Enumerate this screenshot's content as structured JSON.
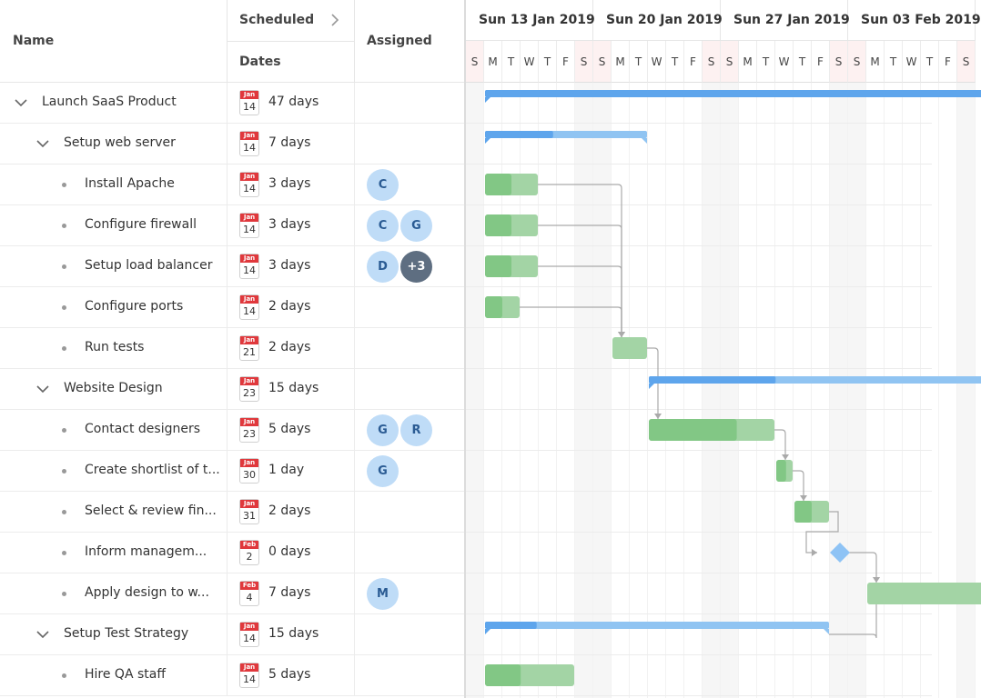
{
  "columns": {
    "name": "Name",
    "scheduled": "Scheduled",
    "dates": "Dates",
    "assigned": "Assigned"
  },
  "timeline": {
    "weeks": [
      "Sun 13 Jan 2019",
      "Sun 20 Jan 2019",
      "Sun 27 Jan 2019",
      "Sun 03 Feb 2019"
    ],
    "day_letters": [
      "S",
      "M",
      "T",
      "W",
      "T",
      "F",
      "S"
    ]
  },
  "rows": [
    {
      "name": "Launch SaaS Product",
      "level": 0,
      "type": "parent",
      "month": "Jan",
      "day": "14",
      "duration": "47 days",
      "assigned": [],
      "bar": {
        "start": 1,
        "len": 47,
        "progress": 0.78
      }
    },
    {
      "name": "Setup web server",
      "level": 1,
      "type": "parent",
      "month": "Jan",
      "day": "14",
      "duration": "7 days",
      "assigned": [],
      "bar": {
        "start": 1,
        "len": 9,
        "progress": 0.42
      }
    },
    {
      "name": "Install Apache",
      "level": 2,
      "type": "task",
      "month": "Jan",
      "day": "14",
      "duration": "3 days",
      "assigned": [
        "C"
      ],
      "bar": {
        "start": 1,
        "len": 3,
        "progress": 0.5
      }
    },
    {
      "name": "Configure firewall",
      "level": 2,
      "type": "task",
      "month": "Jan",
      "day": "14",
      "duration": "3 days",
      "assigned": [
        "C",
        "G"
      ],
      "bar": {
        "start": 1,
        "len": 3,
        "progress": 0.5
      }
    },
    {
      "name": "Setup load balancer",
      "level": 2,
      "type": "task",
      "month": "Jan",
      "day": "14",
      "duration": "3 days",
      "assigned": [
        "D",
        "+3"
      ],
      "bar": {
        "start": 1,
        "len": 3,
        "progress": 0.5
      }
    },
    {
      "name": "Configure ports",
      "level": 2,
      "type": "task",
      "month": "Jan",
      "day": "14",
      "duration": "2 days",
      "assigned": [],
      "bar": {
        "start": 1,
        "len": 2,
        "progress": 0.5
      }
    },
    {
      "name": "Run tests",
      "level": 2,
      "type": "task",
      "month": "Jan",
      "day": "21",
      "duration": "2 days",
      "assigned": [],
      "bar": {
        "start": 8,
        "len": 2,
        "progress": 0
      }
    },
    {
      "name": "Website Design",
      "level": 1,
      "type": "parent",
      "month": "Jan",
      "day": "23",
      "duration": "15 days",
      "assigned": [],
      "bar": {
        "start": 10,
        "len": 20,
        "progress": 0.35
      }
    },
    {
      "name": "Contact designers",
      "level": 2,
      "type": "task",
      "month": "Jan",
      "day": "23",
      "duration": "5 days",
      "assigned": [
        "G",
        "R"
      ],
      "bar": {
        "start": 10,
        "len": 7,
        "progress": 0.7
      }
    },
    {
      "name": "Create shortlist of t...",
      "level": 2,
      "type": "task",
      "month": "Jan",
      "day": "30",
      "duration": "1 day",
      "assigned": [
        "G"
      ],
      "bar": {
        "start": 17,
        "len": 1,
        "progress": 0.6
      }
    },
    {
      "name": "Select & review fin...",
      "level": 2,
      "type": "task",
      "month": "Jan",
      "day": "31",
      "duration": "2 days",
      "assigned": [],
      "bar": {
        "start": 18,
        "len": 2,
        "progress": 0.5
      }
    },
    {
      "name": "Inform managem...",
      "level": 2,
      "type": "milestone",
      "month": "Feb",
      "day": "2",
      "duration": "0 days",
      "assigned": [],
      "bar": {
        "start": 20,
        "len": 0,
        "progress": 0
      }
    },
    {
      "name": "Apply design to w...",
      "level": 2,
      "type": "task",
      "month": "Feb",
      "day": "4",
      "duration": "7 days",
      "assigned": [
        "M"
      ],
      "bar": {
        "start": 22,
        "len": 7,
        "progress": 0
      }
    },
    {
      "name": "Setup Test Strategy",
      "level": 1,
      "type": "parent",
      "month": "Jan",
      "day": "14",
      "duration": "15 days",
      "assigned": [],
      "bar": {
        "start": 1,
        "len": 19,
        "progress": 0.15
      }
    },
    {
      "name": "Hire QA staff",
      "level": 2,
      "type": "task",
      "month": "Jan",
      "day": "14",
      "duration": "5 days",
      "assigned": [],
      "bar": {
        "start": 1,
        "len": 5,
        "progress": 0.4
      }
    }
  ],
  "dependencies": [
    [
      2,
      6
    ],
    [
      3,
      6
    ],
    [
      4,
      6
    ],
    [
      5,
      6
    ],
    [
      6,
      8
    ],
    [
      8,
      9
    ],
    [
      9,
      10
    ],
    [
      10,
      11
    ],
    [
      11,
      12
    ],
    [
      13,
      12
    ]
  ],
  "colors": {
    "parent_bar": "#90c4f2",
    "parent_progress": "#5ea5ec",
    "task_bar": "#a3d4a5",
    "task_progress": "#82c785",
    "milestone": "#8ec3f5",
    "link": "#aaaaaa",
    "avatar": "#bfdcf7",
    "avatar_more": "#5e6e81"
  }
}
